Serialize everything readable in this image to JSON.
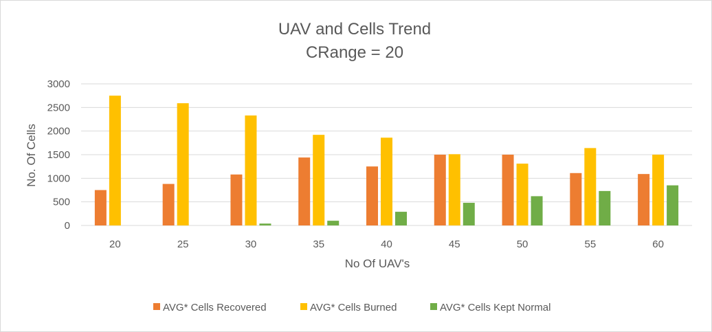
{
  "chart_data": {
    "type": "bar",
    "title": "UAV and Cells Trend",
    "subtitle": "CRange = 20",
    "xlabel": "No Of UAV's",
    "ylabel": "No. Of Cells",
    "categories": [
      "20",
      "25",
      "30",
      "35",
      "40",
      "45",
      "50",
      "55",
      "60"
    ],
    "ylim": [
      0,
      3000
    ],
    "yticks": [
      0,
      500,
      1000,
      1500,
      2000,
      2500,
      3000
    ],
    "grid": true,
    "legend_position": "bottom",
    "series": [
      {
        "name": "AVG* Cells Recovered",
        "color": "#ed7d31",
        "values": [
          750,
          880,
          1080,
          1440,
          1250,
          1500,
          1500,
          1110,
          1090
        ]
      },
      {
        "name": "AVG* Cells Burned",
        "color": "#ffc000",
        "values": [
          2750,
          2590,
          2330,
          1920,
          1860,
          1510,
          1310,
          1640,
          1500
        ]
      },
      {
        "name": "AVG* Cells Kept Normal",
        "color": "#70ad47",
        "values": [
          0,
          0,
          40,
          100,
          290,
          480,
          620,
          730,
          850
        ]
      }
    ]
  }
}
